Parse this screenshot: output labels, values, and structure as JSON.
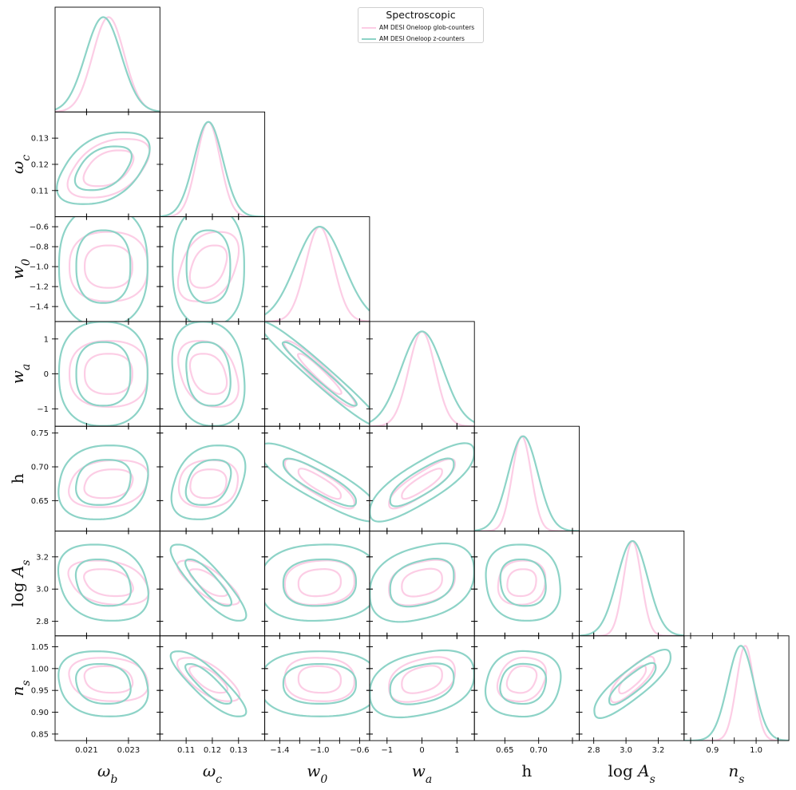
{
  "legend": {
    "title": "Spectroscopic",
    "entries": [
      {
        "label": "AM DESI Oneloop glob-counters",
        "color": "#fccde5"
      },
      {
        "label": "AM DESI Oneloop z-counters",
        "color": "#8dd3c7"
      }
    ]
  },
  "chart_data": {
    "type": "corner",
    "params": [
      {
        "key": "wb",
        "label": "ω_b",
        "range": [
          0.0195,
          0.0245
        ],
        "ticks": [
          0.021,
          0.023
        ],
        "tick_labels": [
          "0.021",
          "0.023"
        ]
      },
      {
        "key": "wc",
        "label": "ω_c",
        "range": [
          0.1,
          0.14
        ],
        "ticks": [
          0.11,
          0.12,
          0.13
        ],
        "tick_labels": [
          "0.11",
          "0.12",
          "0.13"
        ]
      },
      {
        "key": "w0",
        "label": "w_0",
        "range": [
          -1.55,
          -0.5
        ],
        "ticks": [
          -1.4,
          -1.2,
          -1.0,
          -0.8,
          -0.6
        ],
        "tick_labels": [
          "−1.4",
          "−1.2",
          "−1.0",
          "−0.8",
          "−0.6"
        ]
      },
      {
        "key": "wa",
        "label": "w_a",
        "range": [
          -1.5,
          1.5
        ],
        "ticks": [
          -1,
          0,
          1
        ],
        "tick_labels": [
          "−1",
          "0",
          "1"
        ]
      },
      {
        "key": "h",
        "label": "h",
        "range": [
          0.605,
          0.76
        ],
        "ticks": [
          0.65,
          0.7,
          0.75
        ],
        "tick_labels": [
          "0.65",
          "0.70",
          "0.75"
        ]
      },
      {
        "key": "logAs",
        "label": "log A_s",
        "range": [
          2.71,
          3.36
        ],
        "ticks": [
          2.8,
          3.0,
          3.2
        ],
        "tick_labels": [
          "2.8",
          "3.0",
          "3.2"
        ]
      },
      {
        "key": "ns",
        "label": "n_s",
        "range": [
          0.835,
          1.075
        ],
        "ticks": [
          0.85,
          0.9,
          0.95,
          1.0,
          1.05
        ],
        "tick_labels": [
          "0.85",
          "0.90",
          "0.95",
          "1.00",
          "1.05"
        ]
      }
    ],
    "bottom_ticks": [
      {
        "ticks": [
          0.021,
          0.023
        ],
        "tick_labels": [
          "0.021",
          "0.023"
        ]
      },
      {
        "ticks": [
          0.11,
          0.12,
          0.13
        ],
        "tick_labels": [
          "0.11",
          "0.12",
          "0.13"
        ]
      },
      {
        "ticks": [
          -1.4,
          -1.0,
          -0.6
        ],
        "tick_labels": [
          "−1.4",
          "−1.0",
          "−0.6"
        ]
      },
      {
        "ticks": [
          -1,
          0,
          1
        ],
        "tick_labels": [
          "−1",
          "0",
          "1"
        ]
      },
      {
        "ticks": [
          0.65,
          0.7
        ],
        "tick_labels": [
          "0.65",
          "0.70"
        ]
      },
      {
        "ticks": [
          2.8,
          3.0,
          3.2
        ],
        "tick_labels": [
          "2.8",
          "3.0",
          "3.2"
        ]
      },
      {
        "ticks": [
          0.9,
          1.0
        ],
        "tick_labels": [
          "0.9",
          "1.0"
        ]
      }
    ],
    "series": [
      {
        "name": "AM DESI Oneloop glob-counters",
        "color": "#fccde5",
        "means": [
          0.02205,
          0.1185,
          -1.0,
          0.0,
          0.675,
          3.04,
          0.975
        ],
        "sigmas": [
          0.00075,
          0.0045,
          0.14,
          0.38,
          0.014,
          0.055,
          0.02
        ],
        "corr": [
          [
            1,
            0.45,
            0,
            0,
            0.2,
            -0.3,
            -0.15
          ],
          [
            0.45,
            1,
            0.35,
            -0.3,
            0.1,
            -0.75,
            -0.7
          ],
          [
            0,
            0.35,
            1,
            -0.95,
            -0.85,
            0.1,
            -0.05
          ],
          [
            0,
            -0.3,
            -0.95,
            1,
            0.85,
            0.3,
            0.35
          ],
          [
            0.2,
            0.1,
            -0.85,
            0.85,
            1,
            0.1,
            0.2
          ],
          [
            -0.3,
            -0.75,
            0.1,
            0.3,
            0.1,
            1,
            0.8
          ],
          [
            -0.15,
            -0.7,
            -0.05,
            0.35,
            0.2,
            0.8,
            1
          ]
        ]
      },
      {
        "name": "AM DESI Oneloop z-counters",
        "color": "#8dd3c7",
        "means": [
          0.0218,
          0.1185,
          -1.0,
          0.0,
          0.677,
          3.04,
          0.965
        ],
        "sigmas": [
          0.00085,
          0.0055,
          0.24,
          0.6,
          0.022,
          0.095,
          0.03
        ],
        "corr": [
          [
            1,
            0.45,
            0,
            0,
            0.15,
            -0.2,
            -0.15
          ],
          [
            0.45,
            1,
            0,
            -0.15,
            0.3,
            -0.85,
            -0.85
          ],
          [
            0,
            0,
            1,
            -0.97,
            -0.85,
            0.05,
            0
          ],
          [
            0,
            -0.15,
            -0.97,
            1,
            0.8,
            0.3,
            0.3
          ],
          [
            0.15,
            0.3,
            -0.85,
            0.8,
            1,
            -0.1,
            0.1
          ],
          [
            -0.2,
            -0.85,
            0.05,
            0.3,
            -0.1,
            1,
            0.85
          ],
          [
            -0.15,
            -0.85,
            0,
            0.3,
            0.1,
            0.85,
            1
          ]
        ]
      }
    ],
    "contour_levels": [
      "68%",
      "95%"
    ]
  }
}
